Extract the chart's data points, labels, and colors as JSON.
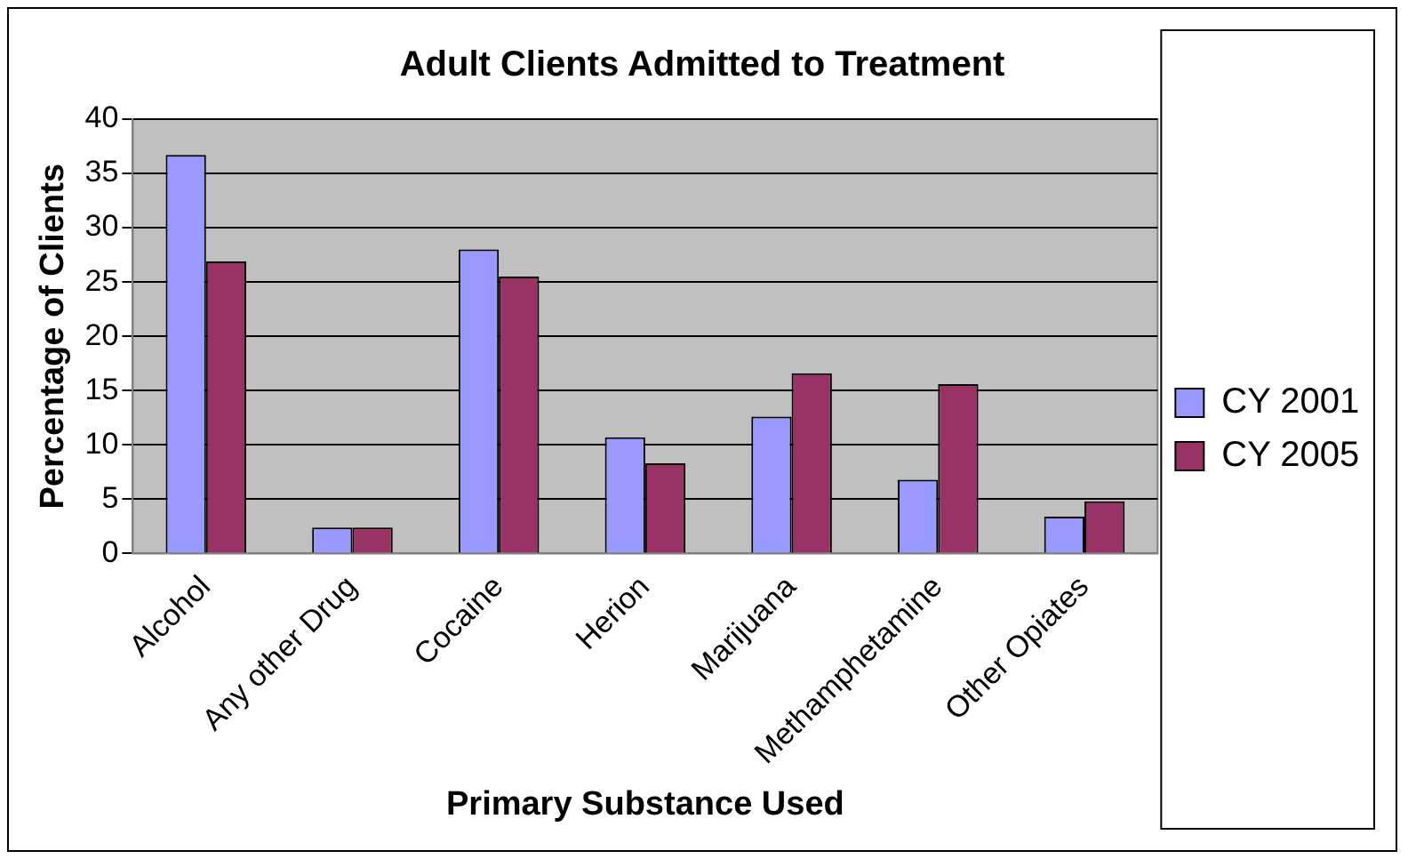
{
  "chart_data": {
    "type": "bar",
    "title": "Adult Clients Admitted to Treatment",
    "xlabel": "Primary Substance Used",
    "ylabel": "Percentage of Clients",
    "categories": [
      "Alcohol",
      "Any other Drug",
      "Cocaine",
      "Herion",
      "Marijuana",
      "Methamphetamine",
      "Other Opiates"
    ],
    "series": [
      {
        "name": "CY 2001",
        "color": "#9999ff",
        "values": [
          36.7,
          2.4,
          28.0,
          10.7,
          12.6,
          6.8,
          3.4
        ]
      },
      {
        "name": "CY 2005",
        "color": "#993366",
        "values": [
          26.9,
          2.4,
          25.5,
          8.3,
          16.6,
          15.6,
          4.8
        ]
      }
    ],
    "ylim": [
      0,
      40
    ],
    "yticks": [
      0,
      5,
      10,
      15,
      20,
      25,
      30,
      35,
      40
    ],
    "grid": "y",
    "legend": "right"
  }
}
